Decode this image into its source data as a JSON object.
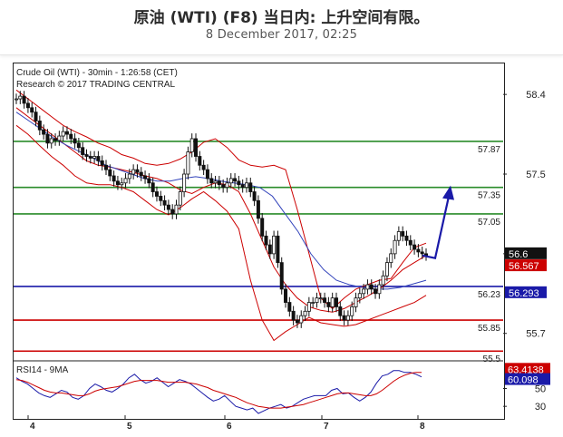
{
  "header": {
    "title": "原油 (WTI) (F8) 当日内: 上升空间有限。",
    "subtitle": "8 December 2017, 02:25"
  },
  "chart_data": [
    {
      "type": "line",
      "title": "Crude Oil (WTI) - 30min - 1:26:58 (CET)",
      "source": "Research © 2017 TRADING CENTRAL",
      "x_tick_labels": [
        "4",
        "5",
        "6",
        "7",
        "8"
      ],
      "y_tick_labels": [
        "58.4",
        "57.5",
        "56.6",
        "55.7"
      ],
      "ylim": [
        55.4,
        58.75
      ],
      "series": [
        {
          "type": "candlestick",
          "values": [
            58.35,
            58.38,
            58.3,
            58.25,
            58.2,
            58.1,
            58.0,
            57.95,
            57.85,
            57.9,
            57.88,
            57.93,
            57.98,
            57.95,
            57.9,
            57.85,
            57.8,
            57.72,
            57.7,
            57.68,
            57.7,
            57.65,
            57.6,
            57.55,
            57.48,
            57.42,
            57.38,
            57.4,
            57.45,
            57.5,
            57.55,
            57.52,
            57.48,
            57.45,
            57.4,
            57.3,
            57.25,
            57.2,
            57.15,
            57.1,
            57.05,
            57.15,
            57.3,
            57.5,
            57.75,
            57.9,
            57.7,
            57.6,
            57.55,
            57.45,
            57.4,
            57.42,
            57.38,
            57.35,
            57.4,
            57.45,
            57.42,
            57.38,
            57.35,
            57.4,
            57.3,
            57.2,
            57.0,
            56.8,
            56.7,
            56.6,
            56.8,
            56.5,
            56.2,
            56.05,
            55.95,
            55.85,
            55.82,
            55.9,
            55.95,
            56.05,
            56.05,
            56.1,
            56.1,
            56.05,
            56.0,
            56.1,
            56.0,
            55.9,
            55.85,
            55.9,
            56.0,
            56.1,
            56.15,
            56.2,
            56.25,
            56.2,
            56.15,
            56.25,
            56.35,
            56.5,
            56.6,
            56.75,
            56.85,
            56.8,
            56.75,
            56.7,
            56.65,
            56.62,
            56.6,
            56.58
          ]
        },
        {
          "name": "upper band",
          "color": "#cc0000",
          "values": [
            58.45,
            58.35,
            58.25,
            58.15,
            58.05,
            57.98,
            57.92,
            57.85,
            57.8,
            57.72,
            57.68,
            57.62,
            57.6,
            57.62,
            57.67,
            57.75,
            57.86,
            57.9,
            57.8,
            57.66,
            57.6,
            57.58,
            57.6,
            57.55,
            57.1,
            56.6,
            56.1,
            55.98,
            56.1,
            56.2,
            56.25,
            56.3,
            56.32,
            56.5,
            56.67,
            56.72
          ]
        },
        {
          "name": "lower band",
          "color": "#cc0000",
          "values": [
            58.05,
            57.95,
            57.82,
            57.7,
            57.6,
            57.48,
            57.4,
            57.38,
            57.38,
            57.35,
            57.3,
            57.2,
            57.1,
            57.04,
            57.12,
            57.22,
            57.3,
            57.2,
            57.08,
            56.88,
            56.3,
            55.85,
            55.62,
            55.72,
            55.8,
            55.88,
            55.82,
            55.8,
            55.78,
            55.8,
            55.85,
            55.9,
            55.95,
            56.0,
            56.05,
            56.13
          ]
        },
        {
          "name": "moving average",
          "color": "#cc0000",
          "values": [
            58.25,
            58.15,
            58.05,
            57.95,
            57.85,
            57.75,
            57.65,
            57.6,
            57.58,
            57.55,
            57.52,
            57.48,
            57.45,
            57.4,
            57.32,
            57.28,
            57.35,
            57.4,
            57.38,
            57.3,
            57.05,
            56.75,
            56.45,
            56.25,
            56.1,
            56.0,
            55.96,
            55.94,
            55.98,
            56.05,
            56.12,
            56.2,
            56.3,
            56.42,
            56.5,
            56.58
          ]
        },
        {
          "name": "moving average 2",
          "color": "#3344bb",
          "values": [
            58.2,
            58.1,
            58.0,
            57.9,
            57.82,
            57.75,
            57.68,
            57.6,
            57.55,
            57.5,
            57.45,
            57.42,
            57.42,
            57.45,
            57.47,
            57.45,
            57.42,
            57.4,
            57.38,
            57.35,
            57.25,
            57.05,
            56.85,
            56.6,
            56.42,
            56.3,
            56.25,
            56.22,
            56.2,
            56.2,
            56.22,
            56.26,
            56.3
          ]
        }
      ],
      "levels": [
        {
          "value": 57.87,
          "label": "57.87",
          "color": "#2a8c2a"
        },
        {
          "value": 57.35,
          "label": "57.35",
          "color": "#2a8c2a"
        },
        {
          "value": 57.05,
          "label": "57.05",
          "color": "#2a8c2a"
        },
        {
          "value": 56.23,
          "label": "56.23",
          "color": "#1a1aa8"
        },
        {
          "value": 55.85,
          "label": "55.85",
          "color": "#cc0000"
        },
        {
          "value": 55.5,
          "label": "55.5",
          "color": "#cc0000"
        }
      ],
      "price_tags": [
        {
          "value": 56.6,
          "label": "56.6",
          "bg": "#111111"
        },
        {
          "value": 56.567,
          "label": "56.567",
          "bg": "#cc0000"
        },
        {
          "value": 56.293,
          "label": "56.293",
          "bg": "#1a1aa8"
        }
      ],
      "arrow": {
        "color": "#1a1aa8",
        "points": [
          [
            56.55,
            0
          ],
          [
            57.35,
            1
          ]
        ]
      }
    },
    {
      "type": "line",
      "title": "RSI14 - 9MA",
      "y_tick_labels": [
        "50",
        "30"
      ],
      "ylim": [
        20,
        80
      ],
      "series": [
        {
          "name": "RSI14",
          "color": "#1a1aa8",
          "values": [
            62,
            58,
            55,
            50,
            45,
            42,
            40,
            44,
            48,
            46,
            40,
            38,
            42,
            50,
            55,
            52,
            48,
            46,
            50,
            55,
            62,
            66,
            60,
            56,
            58,
            62,
            57,
            52,
            56,
            60,
            58,
            55,
            50,
            45,
            40,
            36,
            38,
            42,
            36,
            30,
            28,
            26,
            28,
            22,
            25,
            28,
            30,
            32,
            28,
            30,
            34,
            38,
            40,
            42,
            42,
            42,
            48,
            50,
            44,
            45,
            40,
            36,
            40,
            46,
            56,
            64,
            66,
            70,
            70,
            68,
            68,
            66,
            63
          ]
        },
        {
          "name": "9MA",
          "color": "#cc0000",
          "values": [
            60,
            59,
            57,
            54,
            51,
            48,
            46,
            45,
            45,
            44,
            43,
            42,
            42,
            44,
            47,
            49,
            50,
            51,
            52,
            54,
            56,
            58,
            59,
            59,
            59,
            59,
            58,
            57,
            57,
            57,
            57,
            56,
            55,
            53,
            51,
            48,
            46,
            44,
            42,
            40,
            37,
            34,
            32,
            30,
            29,
            28,
            28,
            28,
            29,
            30,
            31,
            32,
            34,
            36,
            38,
            40,
            42,
            44,
            45,
            45,
            44,
            43,
            42,
            42,
            44,
            48,
            53,
            58,
            62,
            65,
            67,
            68,
            68
          ]
        }
      ],
      "price_tags": [
        {
          "value": 63.4138,
          "label": "63.4138",
          "bg": "#cc0000"
        },
        {
          "value": 60.098,
          "label": "60.098",
          "bg": "#1a1aa8"
        }
      ]
    }
  ]
}
